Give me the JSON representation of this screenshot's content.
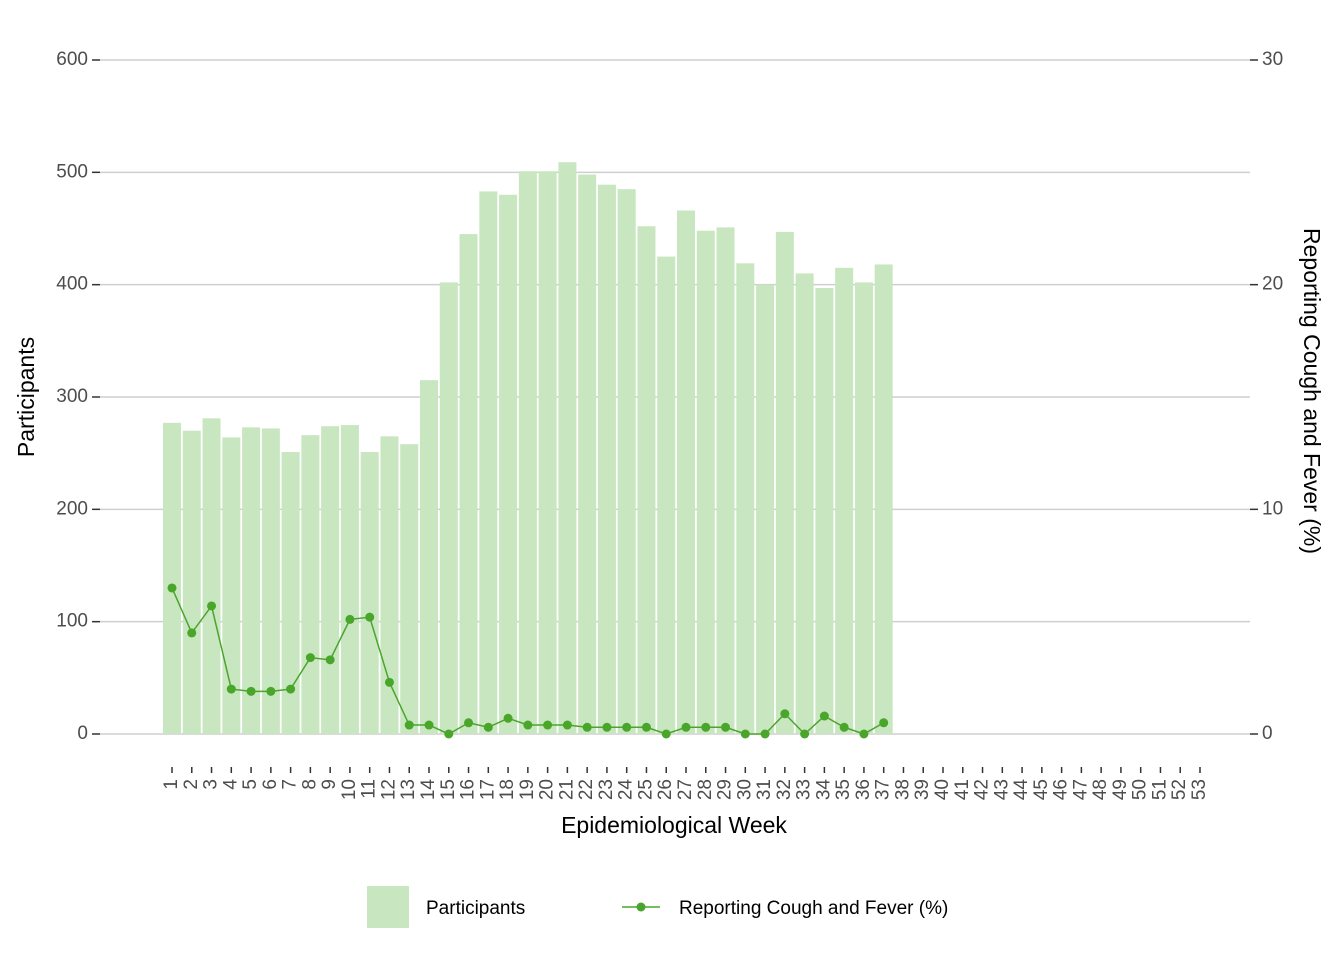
{
  "chart_data": {
    "type": "bar_line",
    "xlabel": "Epidemiological Week",
    "ylabel": "Participants",
    "y2label": "Reporting Cough and Fever (%)",
    "categories": [
      "1",
      "2",
      "3",
      "4",
      "5",
      "6",
      "7",
      "8",
      "9",
      "10",
      "11",
      "12",
      "13",
      "14",
      "15",
      "16",
      "17",
      "18",
      "19",
      "20",
      "21",
      "22",
      "23",
      "24",
      "25",
      "26",
      "27",
      "28",
      "29",
      "30",
      "31",
      "32",
      "33",
      "34",
      "35",
      "36",
      "37",
      "38",
      "39",
      "40",
      "41",
      "42",
      "43",
      "44",
      "45",
      "46",
      "47",
      "48",
      "49",
      "50",
      "51",
      "52",
      "53"
    ],
    "series": [
      {
        "name": "Participants",
        "color": "#c8e6bf",
        "axis": "y",
        "values": [
          277,
          270,
          281,
          264,
          273,
          272,
          251,
          266,
          274,
          275,
          251,
          265,
          258,
          315,
          402,
          445,
          483,
          480,
          501,
          501,
          509,
          498,
          489,
          485,
          452,
          425,
          466,
          448,
          451,
          419,
          400,
          447,
          410,
          397,
          415,
          402,
          418,
          null,
          null,
          null,
          null,
          null,
          null,
          null,
          null,
          null,
          null,
          null,
          null,
          null,
          null,
          null,
          null
        ]
      },
      {
        "name": "Reporting Cough and Fever (%)",
        "color": "#4aa52b",
        "axis": "y2",
        "values": [
          6.5,
          4.5,
          5.7,
          2.0,
          1.9,
          1.9,
          2.0,
          3.4,
          3.3,
          5.1,
          5.2,
          2.3,
          0.4,
          0.4,
          0,
          0.5,
          0.3,
          0.7,
          0.4,
          0.4,
          0.4,
          0.3,
          0.3,
          0.3,
          0.3,
          0,
          0.3,
          0.3,
          0.3,
          0,
          0,
          0.9,
          0,
          0.8,
          0.3,
          0,
          0.5,
          null,
          null,
          null,
          null,
          null,
          null,
          null,
          null,
          null,
          null,
          null,
          null,
          null,
          null,
          null,
          null
        ]
      }
    ],
    "ylim": [
      0,
      600
    ],
    "yticks": [
      0,
      100,
      200,
      300,
      400,
      500,
      600
    ],
    "y2lim": [
      0,
      30
    ],
    "y2ticks": [
      0,
      10,
      20,
      30
    ],
    "grid": true,
    "legend": "bottom"
  }
}
